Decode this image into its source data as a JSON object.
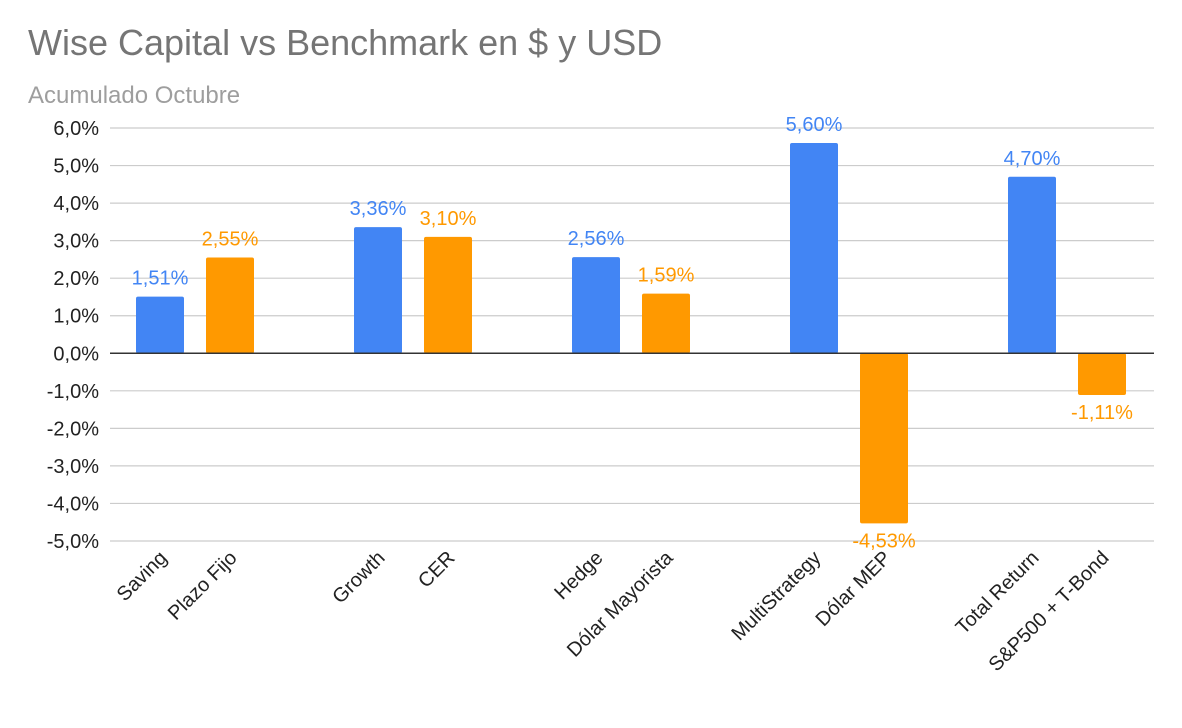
{
  "chart_data": {
    "type": "bar",
    "title": "Wise Capital vs Benchmark en $ y USD",
    "subtitle": "Acumulado Octubre",
    "ylim": [
      -5.0,
      6.0
    ],
    "yticks": [
      "6,0%",
      "5,0%",
      "4,0%",
      "3,0%",
      "2,0%",
      "1,0%",
      "0,0%",
      "-1,0%",
      "-2,0%",
      "-3,0%",
      "-4,0%",
      "-5,0%"
    ],
    "grid": true,
    "legend": "none",
    "groups": [
      {
        "bars": [
          {
            "category": "Saving",
            "value": 1.51,
            "label": "1,51%",
            "color": "#4285f4"
          },
          {
            "category": "Plazo Fijo",
            "value": 2.55,
            "label": "2,55%",
            "color": "#ff9900"
          }
        ]
      },
      {
        "bars": [
          {
            "category": "Growth",
            "value": 3.36,
            "label": "3,36%",
            "color": "#4285f4"
          },
          {
            "category": "CER",
            "value": 3.1,
            "label": "3,10%",
            "color": "#ff9900"
          }
        ]
      },
      {
        "bars": [
          {
            "category": "Hedge",
            "value": 2.56,
            "label": "2,56%",
            "color": "#4285f4"
          },
          {
            "category": "Dólar Mayorista",
            "value": 1.59,
            "label": "1,59%",
            "color": "#ff9900"
          }
        ]
      },
      {
        "bars": [
          {
            "category": "MultiStrategy",
            "value": 5.6,
            "label": "5,60%",
            "color": "#4285f4"
          },
          {
            "category": "Dólar MEP",
            "value": -4.53,
            "label": "-4,53%",
            "color": "#ff9900"
          }
        ]
      },
      {
        "bars": [
          {
            "category": "Total Return",
            "value": 4.7,
            "label": "4,70%",
            "color": "#4285f4"
          },
          {
            "category": "S&P500 + T-Bond",
            "value": -1.11,
            "label": "-1,11%",
            "color": "#ff9900"
          }
        ]
      }
    ]
  }
}
